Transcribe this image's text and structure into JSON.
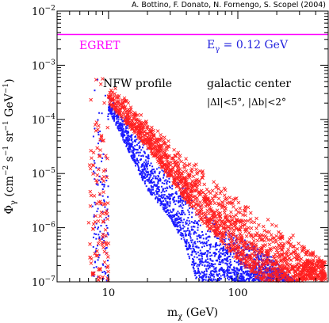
{
  "chart_data": {
    "type": "scatter",
    "title": "",
    "credit": "A. Bottino, F. Donato, N. Fornengo, S. Scopel (2004)",
    "xlabel": {
      "main": "m",
      "sub": "χ",
      "rest": " (GeV)"
    },
    "ylabel": {
      "main": "Φ",
      "sub": "γ",
      "rest1": " (cm",
      "exp1": "−2",
      "rest2": " s",
      "exp2": "−1",
      "rest3": " sr",
      "exp3": "−1",
      "rest4": " GeV",
      "exp4": "−1",
      "rest5": ")"
    },
    "xscale": "log",
    "yscale": "log",
    "xlim": [
      4,
      500
    ],
    "ylim": [
      1e-07,
      0.01
    ],
    "x_ticks": [
      {
        "value": 10,
        "label": "10"
      },
      {
        "value": 100,
        "label": "100"
      }
    ],
    "y_ticks": [
      {
        "value": 1e-07,
        "base": "10",
        "exp": "−7"
      },
      {
        "value": 1e-06,
        "base": "10",
        "exp": "−6"
      },
      {
        "value": 1e-05,
        "base": "10",
        "exp": "−5"
      },
      {
        "value": 0.0001,
        "base": "10",
        "exp": "−4"
      },
      {
        "value": 0.001,
        "base": "10",
        "exp": "−3"
      },
      {
        "value": 0.01,
        "base": "10",
        "exp": "−2"
      }
    ],
    "egret_line": {
      "label": "EGRET",
      "y": 0.0037,
      "color": "#ff00ff"
    },
    "energy_label": {
      "main": "E",
      "sub": "γ",
      "rest": " = 0.12 GeV",
      "color": "#2222dd"
    },
    "annotations": {
      "profile": "NFW profile",
      "region": "galactic center",
      "cuts": "|Δl|<5°, |Δb|<2°"
    },
    "series": [
      {
        "marker": "dot",
        "color": "#1a1aff",
        "band": {
          "upper": [
            [
              7,
              0.0015
            ],
            [
              10,
              0.0003
            ],
            [
              20,
              3e-05
            ],
            [
              50,
              3e-06
            ],
            [
              100,
              8e-07
            ],
            [
              200,
              2.5e-07
            ],
            [
              280,
              1e-07
            ]
          ],
          "lower": [
            [
              10,
              0.00015
            ],
            [
              15,
              2e-05
            ],
            [
              20,
              5e-06
            ],
            [
              30,
              1.5e-06
            ],
            [
              40,
              4e-07
            ],
            [
              48,
              1e-07
            ]
          ]
        },
        "x_range": [
          7.5,
          480
        ],
        "count": 2200
      },
      {
        "marker": "cross",
        "color": "#ff2020",
        "band": {
          "upper": [
            [
              7,
              0.003
            ],
            [
              10,
              0.0005
            ],
            [
              30,
              4e-05
            ],
            [
              100,
              4e-06
            ],
            [
              200,
              1.2e-06
            ],
            [
              500,
              2.5e-07
            ]
          ],
          "lower": [
            [
              10,
              0.0002
            ],
            [
              20,
              3e-05
            ],
            [
              50,
              1.5e-06
            ],
            [
              100,
              2.5e-07
            ],
            [
              150,
              1e-07
            ]
          ]
        },
        "x_range": [
          7,
          480
        ],
        "count": 1700
      }
    ]
  }
}
